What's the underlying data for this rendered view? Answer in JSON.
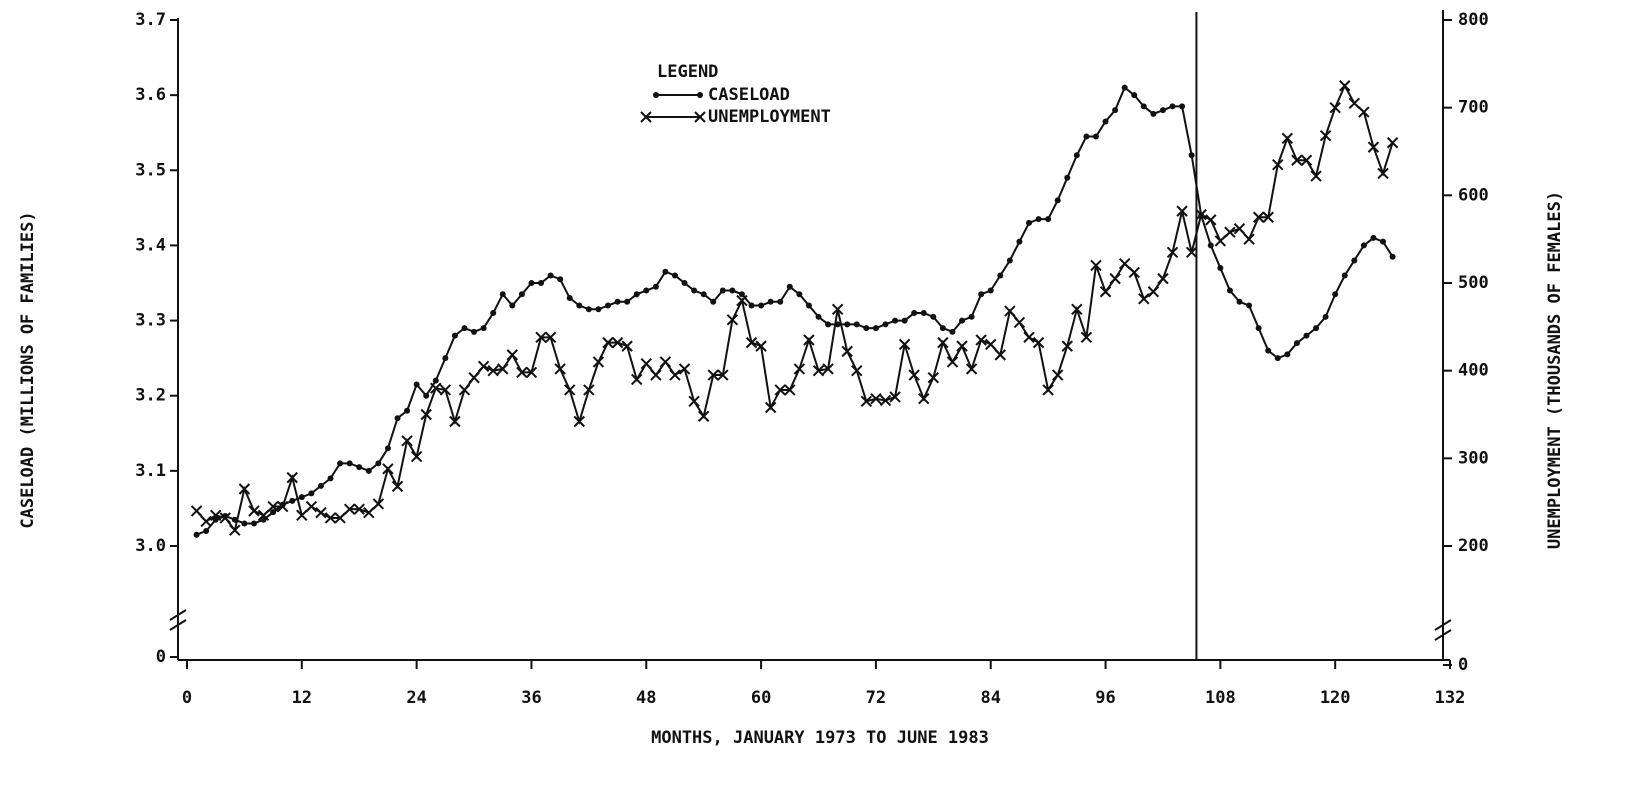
{
  "chart_data": {
    "type": "line",
    "x_label": "MONTHS, JANUARY 1973 TO JUNE 1983",
    "y_label": "CASELOAD (MILLIONS OF FAMILIES)",
    "y2_label": "UNEMPLOYMENT (THOUSANDS OF FEMALES)",
    "legend_title": "LEGEND",
    "legend": "top-center",
    "axis_break": true,
    "xlim": [
      0,
      132
    ],
    "xticks": [
      0,
      12,
      24,
      36,
      48,
      60,
      72,
      84,
      96,
      108,
      120,
      132
    ],
    "ylim": [
      3.0,
      3.7
    ],
    "yticks": [
      0,
      {
        "value": 3.0,
        "label": "3.0"
      },
      3.1,
      3.2,
      3.3,
      3.4,
      3.5,
      3.6,
      3.7
    ],
    "y2lim": [
      200,
      800
    ],
    "y2ticks": [
      0,
      200,
      300,
      400,
      500,
      600,
      700,
      800
    ],
    "vline_x": 105.5,
    "x": [
      1,
      2,
      3,
      4,
      5,
      6,
      7,
      8,
      9,
      10,
      11,
      12,
      13,
      14,
      15,
      16,
      17,
      18,
      19,
      20,
      21,
      22,
      23,
      24,
      25,
      26,
      27,
      28,
      29,
      30,
      31,
      32,
      33,
      34,
      35,
      36,
      37,
      38,
      39,
      40,
      41,
      42,
      43,
      44,
      45,
      46,
      47,
      48,
      49,
      50,
      51,
      52,
      53,
      54,
      55,
      56,
      57,
      58,
      59,
      60,
      61,
      62,
      63,
      64,
      65,
      66,
      67,
      68,
      69,
      70,
      71,
      72,
      73,
      74,
      75,
      76,
      77,
      78,
      79,
      80,
      81,
      82,
      83,
      84,
      85,
      86,
      87,
      88,
      89,
      90,
      91,
      92,
      93,
      94,
      95,
      96,
      97,
      98,
      99,
      100,
      101,
      102,
      103,
      104,
      105,
      106,
      107,
      108,
      109,
      110,
      111,
      112,
      113,
      114,
      115,
      116,
      117,
      118,
      119,
      120,
      121,
      122,
      123,
      124,
      125,
      126
    ],
    "series": [
      {
        "name": "CASELOAD",
        "color": "#111111",
        "marker": "dot",
        "values": [
          3.015,
          3.02,
          3.035,
          3.04,
          3.035,
          3.03,
          3.03,
          3.035,
          3.045,
          3.055,
          3.06,
          3.065,
          3.07,
          3.08,
          3.09,
          3.11,
          3.11,
          3.105,
          3.1,
          3.11,
          3.13,
          3.17,
          3.18,
          3.215,
          3.2,
          3.22,
          3.25,
          3.28,
          3.29,
          3.285,
          3.29,
          3.31,
          3.335,
          3.32,
          3.335,
          3.35,
          3.35,
          3.36,
          3.355,
          3.33,
          3.32,
          3.315,
          3.315,
          3.32,
          3.325,
          3.325,
          3.335,
          3.34,
          3.345,
          3.365,
          3.36,
          3.35,
          3.34,
          3.335,
          3.325,
          3.34,
          3.34,
          3.335,
          3.32,
          3.32,
          3.325,
          3.325,
          3.345,
          3.335,
          3.32,
          3.305,
          3.295,
          3.295,
          3.295,
          3.295,
          3.29,
          3.29,
          3.295,
          3.3,
          3.3,
          3.31,
          3.31,
          3.305,
          3.29,
          3.285,
          3.3,
          3.305,
          3.335,
          3.34,
          3.36,
          3.38,
          3.405,
          3.43,
          3.435,
          3.435,
          3.46,
          3.49,
          3.52,
          3.545,
          3.545,
          3.565,
          3.58,
          3.61,
          3.6,
          3.585,
          3.575,
          3.58,
          3.585,
          3.585,
          3.52,
          3.44,
          3.4,
          3.37,
          3.34,
          3.325,
          3.32,
          3.29,
          3.26,
          3.25,
          3.255,
          3.27,
          3.28,
          3.29,
          3.305,
          3.335,
          3.36,
          3.38,
          3.4,
          3.41,
          3.405,
          3.385
        ]
      },
      {
        "name": "UNEMPLOYMENT",
        "color": "#111111",
        "marker": "x",
        "axis": "y2",
        "values": [
          240,
          228,
          235,
          232,
          218,
          265,
          240,
          235,
          245,
          245,
          278,
          235,
          245,
          238,
          232,
          232,
          242,
          242,
          238,
          248,
          288,
          268,
          320,
          302,
          350,
          380,
          378,
          342,
          378,
          392,
          405,
          400,
          402,
          418,
          398,
          398,
          438,
          438,
          402,
          378,
          342,
          378,
          410,
          432,
          432,
          428,
          390,
          408,
          395,
          410,
          395,
          402,
          365,
          348,
          395,
          395,
          458,
          480,
          432,
          428,
          358,
          378,
          378,
          402,
          435,
          400,
          402,
          470,
          422,
          400,
          365,
          368,
          366,
          370,
          430,
          395,
          368,
          392,
          432,
          410,
          428,
          402,
          435,
          430,
          418,
          468,
          455,
          438,
          432,
          378,
          395,
          428,
          470,
          438,
          520,
          490,
          505,
          522,
          512,
          482,
          490,
          505,
          535,
          582,
          535,
          578,
          572,
          548,
          558,
          562,
          550,
          575,
          575,
          635,
          665,
          640,
          640,
          622,
          668,
          700,
          725,
          705,
          695,
          655,
          625,
          660
        ]
      }
    ]
  }
}
